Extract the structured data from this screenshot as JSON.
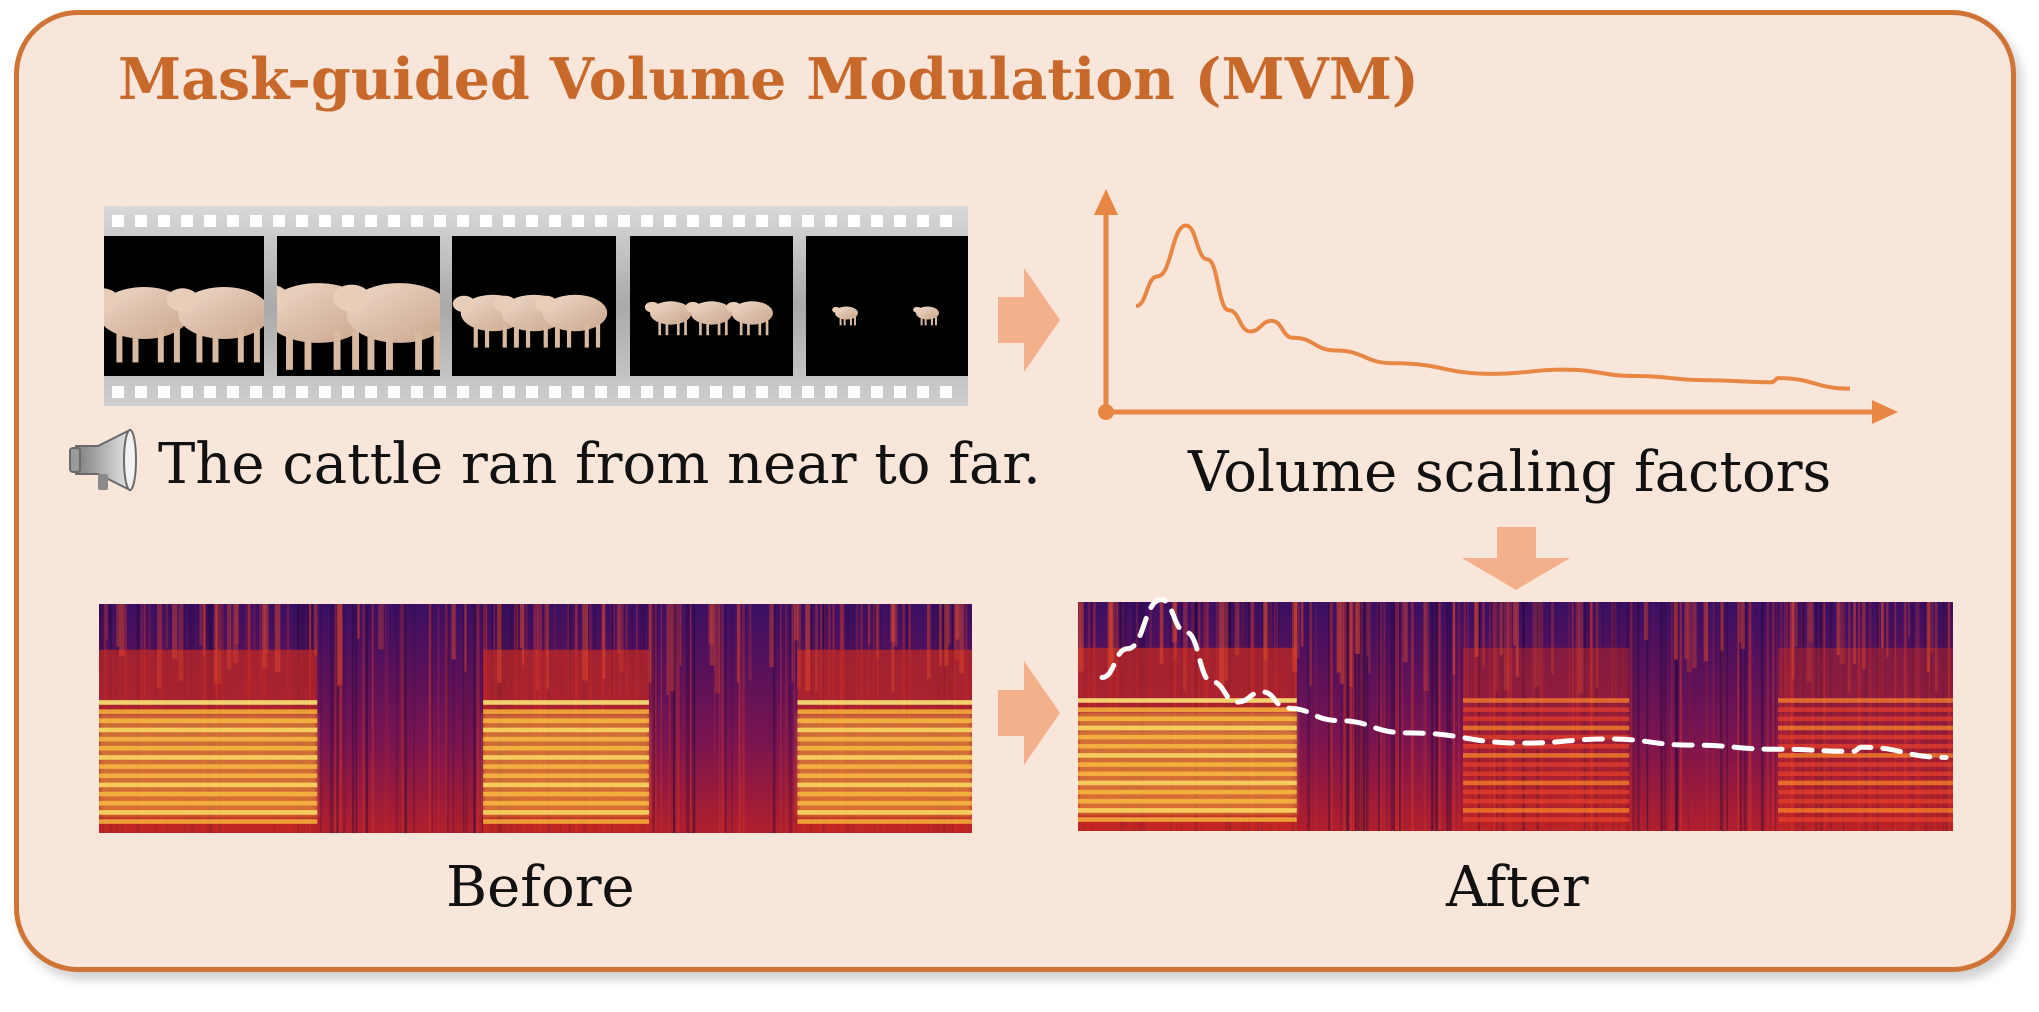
{
  "title": "Mask-guided Volume Modulation (MVM)",
  "prompt_text": "The cattle ran from near to far.",
  "curve_label": "Volume scaling factors",
  "before_label": "Before",
  "after_label": "After",
  "colors": {
    "accent": "#cf7434",
    "title": "#c8692c",
    "panel_bg": "#f9e6db",
    "arrow": "#f3b08a",
    "curve": "#e88743",
    "spectrogram_low": "#240b4f",
    "spectrogram_mid": "#b3182c",
    "spectrogram_high": "#fbe06a"
  },
  "icons": [
    "megaphone-icon",
    "right-arrow-icon",
    "down-arrow-icon"
  ],
  "film_frames": [
    {
      "cows": 2,
      "scale": 1.0
    },
    {
      "cows": 2,
      "scale": 1.15
    },
    {
      "cows": 3,
      "scale": 0.7
    },
    {
      "cows": 3,
      "scale": 0.45
    },
    {
      "cows": 2,
      "scale": 0.25
    }
  ],
  "volume_curve": [
    [
      0.0,
      0.5
    ],
    [
      0.03,
      0.64
    ],
    [
      0.07,
      0.88
    ],
    [
      0.1,
      0.72
    ],
    [
      0.13,
      0.48
    ],
    [
      0.16,
      0.38
    ],
    [
      0.19,
      0.43
    ],
    [
      0.22,
      0.35
    ],
    [
      0.28,
      0.29
    ],
    [
      0.36,
      0.23
    ],
    [
      0.5,
      0.18
    ],
    [
      0.6,
      0.2
    ],
    [
      0.7,
      0.17
    ],
    [
      0.8,
      0.15
    ],
    [
      0.89,
      0.14
    ],
    [
      0.9,
      0.16
    ],
    [
      1.0,
      0.11
    ]
  ],
  "spectrogram_before": {
    "bright_segments": [
      [
        0.0,
        0.25
      ],
      [
        0.44,
        0.63
      ],
      [
        0.8,
        1.0
      ]
    ],
    "intensity": [
      1.0,
      1.0,
      1.0
    ]
  },
  "spectrogram_after": {
    "bright_segments": [
      [
        0.0,
        0.25
      ],
      [
        0.44,
        0.63
      ],
      [
        0.8,
        1.0
      ]
    ],
    "intensity": [
      1.0,
      0.55,
      0.5
    ]
  }
}
